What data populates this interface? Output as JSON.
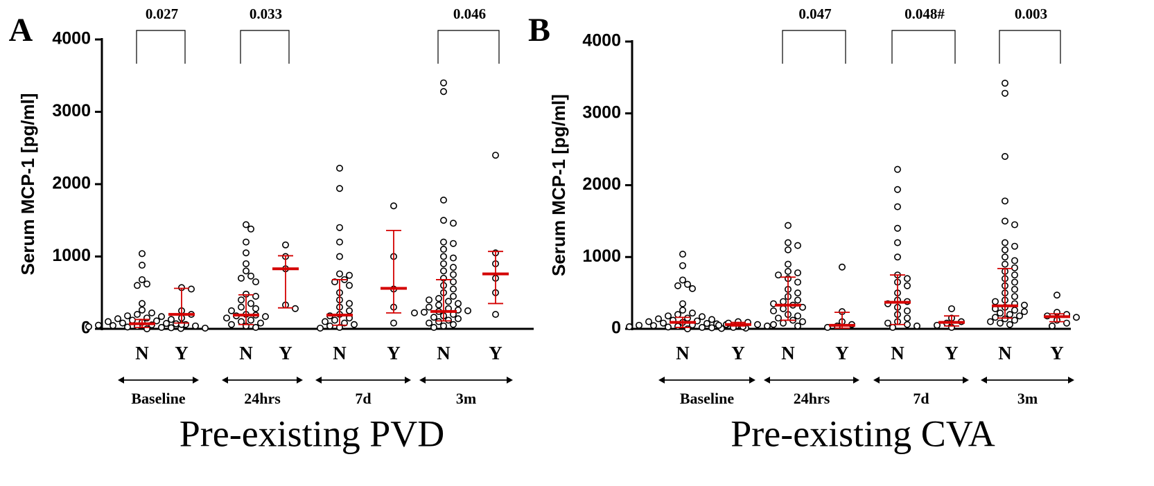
{
  "chart_data": [
    {
      "type": "dot",
      "panel_label": "A",
      "ylabel": "Serum MCP-1 [pg/ml]",
      "xlabel": "Pre-existing PVD",
      "categories": [
        "N",
        "Y",
        "N",
        "Y",
        "N",
        "Y",
        "N",
        "Y"
      ],
      "timepoints": [
        "Baseline",
        "24hrs",
        "7d",
        "3m"
      ],
      "p_values": [
        "0.027",
        "0.033",
        null,
        "0.046"
      ],
      "ylim": [
        0,
        4000
      ],
      "yticks": [
        0,
        1000,
        2000,
        3000,
        4000
      ],
      "marker_color": "#000000",
      "summary_color": "#d40000",
      "groups": [
        {
          "values": [
            1040,
            880,
            680,
            620,
            600,
            350,
            260,
            220,
            200,
            180,
            170,
            150,
            140,
            130,
            120,
            110,
            100,
            90,
            80,
            75,
            70,
            60,
            55,
            50,
            45,
            40,
            35,
            30,
            25,
            20,
            15,
            10,
            5,
            0
          ],
          "median": 70,
          "q1": 20,
          "q3": 130
        },
        {
          "values": [
            570,
            550,
            250,
            200,
            150,
            60
          ],
          "median": 200,
          "q1": 80,
          "q3": 560
        },
        {
          "values": [
            1440,
            1380,
            1200,
            1050,
            900,
            800,
            730,
            700,
            650,
            480,
            450,
            400,
            350,
            300,
            280,
            250,
            200,
            190,
            180,
            170,
            150,
            120,
            100,
            80,
            60,
            40,
            20
          ],
          "median": 190,
          "q1": 60,
          "q3": 470
        },
        {
          "values": [
            1160,
            1000,
            830,
            330,
            280
          ],
          "median": 830,
          "q1": 290,
          "q3": 1010
        },
        {
          "values": [
            2220,
            1940,
            1400,
            1200,
            1000,
            760,
            740,
            680,
            650,
            600,
            500,
            400,
            350,
            300,
            250,
            200,
            180,
            150,
            120,
            100,
            80,
            60,
            40,
            20,
            10
          ],
          "median": 190,
          "q1": 50,
          "q3": 680
        },
        {
          "values": [
            1700,
            1000,
            550,
            300,
            80
          ],
          "median": 560,
          "q1": 220,
          "q3": 1360
        },
        {
          "values": [
            3400,
            3280,
            1780,
            1500,
            1460,
            1200,
            1180,
            1100,
            1000,
            980,
            900,
            850,
            800,
            750,
            700,
            650,
            600,
            550,
            500,
            450,
            420,
            400,
            380,
            350,
            330,
            300,
            280,
            260,
            250,
            240,
            230,
            220,
            200,
            180,
            160,
            140,
            120,
            100,
            80,
            60,
            40,
            20
          ],
          "median": 240,
          "q1": 110,
          "q3": 680
        },
        {
          "values": [
            2400,
            1050,
            900,
            700,
            500,
            200
          ],
          "median": 760,
          "q1": 350,
          "q3": 1070
        }
      ]
    },
    {
      "type": "dot",
      "panel_label": "B",
      "ylabel": "Serum MCP-1 [pg/ml]",
      "xlabel": "Pre-existing CVA",
      "categories": [
        "N",
        "Y",
        "N",
        "Y",
        "N",
        "Y",
        "N",
        "Y"
      ],
      "timepoints": [
        "Baseline",
        "24hrs",
        "7d",
        "3m"
      ],
      "p_values": [
        null,
        "0.047",
        "0.048#",
        "0.003"
      ],
      "ylim": [
        0,
        4000
      ],
      "yticks": [
        0,
        1000,
        2000,
        3000,
        4000
      ],
      "marker_color": "#000000",
      "summary_color": "#d40000",
      "groups": [
        {
          "values": [
            1040,
            880,
            680,
            620,
            600,
            560,
            350,
            260,
            220,
            200,
            180,
            170,
            150,
            140,
            130,
            120,
            110,
            100,
            90,
            80,
            75,
            70,
            60,
            55,
            50,
            45,
            40,
            35,
            30,
            25,
            20,
            15,
            10,
            5,
            0
          ],
          "median": 90,
          "q1": 20,
          "q3": 160
        },
        {
          "values": [
            100,
            90,
            80,
            60,
            50,
            40,
            30,
            20
          ],
          "median": 60,
          "q1": 40,
          "q3": 90
        },
        {
          "values": [
            1440,
            1200,
            1160,
            1100,
            900,
            800,
            780,
            750,
            700,
            650,
            550,
            500,
            450,
            400,
            380,
            350,
            330,
            300,
            280,
            250,
            200,
            180,
            150,
            120,
            100,
            80,
            60,
            40
          ],
          "median": 330,
          "q1": 120,
          "q3": 720
        },
        {
          "values": [
            860,
            240,
            100,
            60,
            40,
            20
          ],
          "median": 50,
          "q1": 10,
          "q3": 230
        },
        {
          "values": [
            2220,
            1940,
            1700,
            1400,
            1200,
            1000,
            750,
            700,
            650,
            600,
            500,
            400,
            380,
            350,
            300,
            250,
            200,
            150,
            100,
            80,
            60,
            40,
            20
          ],
          "median": 370,
          "q1": 60,
          "q3": 750
        },
        {
          "values": [
            280,
            150,
            100,
            80,
            50,
            20
          ],
          "median": 90,
          "q1": 40,
          "q3": 180
        },
        {
          "values": [
            3420,
            3280,
            2400,
            1780,
            1500,
            1450,
            1200,
            1150,
            1100,
            1000,
            950,
            900,
            850,
            800,
            750,
            700,
            650,
            600,
            550,
            500,
            450,
            400,
            380,
            350,
            330,
            300,
            280,
            260,
            240,
            220,
            200,
            180,
            160,
            140,
            120,
            100,
            80,
            60
          ],
          "median": 320,
          "q1": 150,
          "q3": 840
        },
        {
          "values": [
            470,
            230,
            200,
            180,
            160,
            120,
            80,
            40
          ],
          "median": 170,
          "q1": 100,
          "q3": 210
        }
      ]
    }
  ]
}
